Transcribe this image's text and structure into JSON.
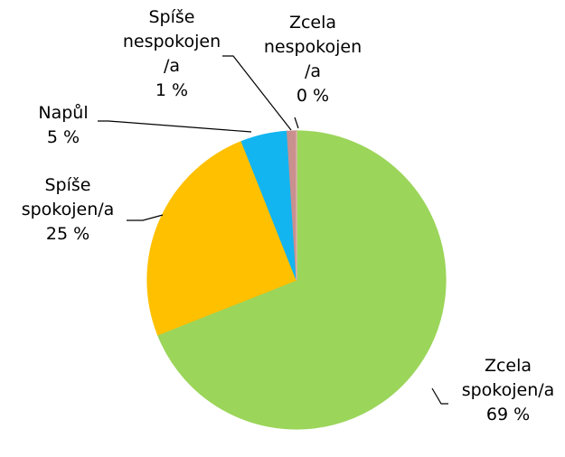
{
  "chart_data": {
    "type": "pie",
    "categories": [
      "Zcela spokojen/a",
      "Spíše spokojen/a",
      "Napůl",
      "Spíše nespokojen/a",
      "Zcela nespokojen/a"
    ],
    "values": [
      69,
      25,
      5,
      1,
      0
    ],
    "value_labels": [
      "69 %",
      "25 %",
      "5 %",
      "1 %",
      "0 %"
    ],
    "colors": [
      "#9bd55a",
      "#ffc000",
      "#12b5f0",
      "#c9908e",
      "#e8b4b8"
    ]
  }
}
